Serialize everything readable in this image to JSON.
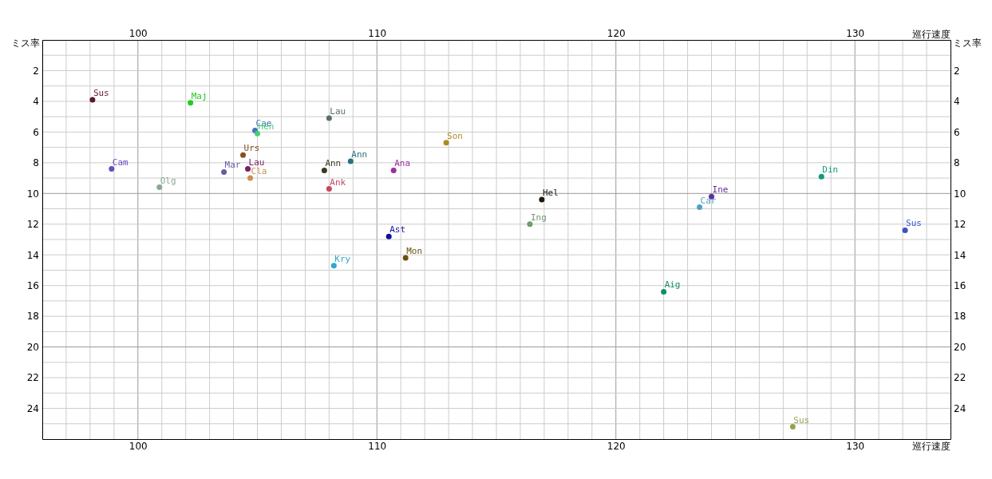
{
  "chart_data": {
    "type": "scatter",
    "xlabel": "巡行速度",
    "x2label": "巡行速度",
    "ylabel": "ミス率",
    "y2label": "ミス率",
    "xlim": [
      96,
      134
    ],
    "x2lim": [
      96,
      134
    ],
    "ylim": [
      26,
      0
    ],
    "y2lim": [
      26,
      0
    ],
    "xticks": [
      {
        "value": 96,
        "label": null
      },
      {
        "value": 97,
        "label": null
      },
      {
        "value": 98,
        "label": null
      },
      {
        "value": 99,
        "label": null
      },
      100,
      {
        "value": 101,
        "label": null
      },
      {
        "value": 102,
        "label": null
      },
      {
        "value": 103,
        "label": null
      },
      {
        "value": 104,
        "label": null
      },
      {
        "value": 105,
        "label": null
      },
      {
        "value": 106,
        "label": null
      },
      {
        "value": 107,
        "label": null
      },
      {
        "value": 108,
        "label": null
      },
      {
        "value": 109,
        "label": null
      },
      110,
      {
        "value": 111,
        "label": null
      },
      {
        "value": 112,
        "label": null
      },
      {
        "value": 113,
        "label": null
      },
      {
        "value": 114,
        "label": null
      },
      {
        "value": 115,
        "label": null
      },
      {
        "value": 116,
        "label": null
      },
      {
        "value": 117,
        "label": null
      },
      {
        "value": 118,
        "label": null
      },
      {
        "value": 119,
        "label": null
      },
      120,
      {
        "value": 121,
        "label": null
      },
      {
        "value": 122,
        "label": null
      },
      {
        "value": 123,
        "label": null
      },
      {
        "value": 124,
        "label": null
      },
      {
        "value": 125,
        "label": null
      },
      {
        "value": 126,
        "label": null
      },
      {
        "value": 127,
        "label": null
      },
      {
        "value": 128,
        "label": null
      },
      {
        "value": 129,
        "label": null
      },
      130,
      {
        "value": 131,
        "label": null
      },
      {
        "value": 132,
        "label": null
      },
      {
        "value": 133,
        "label": null
      }
    ],
    "x2ticks": [
      100,
      110,
      120,
      130
    ],
    "yticks": [
      {
        "value": 1,
        "label": null
      },
      2,
      {
        "value": 3,
        "label": null
      },
      4,
      {
        "value": 5,
        "label": null
      },
      6,
      {
        "value": 7,
        "label": null
      },
      8,
      {
        "value": 9,
        "label": null
      },
      10,
      {
        "value": 11,
        "label": null
      },
      12,
      {
        "value": 13,
        "label": null
      },
      14,
      {
        "value": 15,
        "label": null
      },
      16,
      {
        "value": 17,
        "label": null
      },
      18,
      {
        "value": 19,
        "label": null
      },
      20,
      {
        "value": 21,
        "label": null
      },
      22,
      {
        "value": 23,
        "label": null
      },
      24,
      {
        "value": 25,
        "label": null
      }
    ],
    "y2ticks": [
      2,
      4,
      6,
      8,
      10,
      12,
      14,
      16,
      18,
      20,
      22,
      24
    ],
    "grid": true,
    "marker": "circle",
    "series": [
      {
        "name": "Sus",
        "color": "#5a1a2a",
        "x": [
          98.1
        ],
        "values": [
          3.9
        ]
      },
      {
        "name": "Maj",
        "color": "#22cc22",
        "x": [
          102.2
        ],
        "values": [
          4.1
        ]
      },
      {
        "name": "Cam",
        "color": "#6a4ac0",
        "x": [
          98.9
        ],
        "values": [
          8.4
        ]
      },
      {
        "name": "Olg",
        "color": "#8aaa90",
        "x": [
          100.9
        ],
        "values": [
          9.6
        ]
      },
      {
        "name": "Mar",
        "color": "#6a5aaa",
        "x": [
          103.6
        ],
        "values": [
          8.6
        ]
      },
      {
        "name": "Urs",
        "color": "#8a5020",
        "x": [
          104.4
        ],
        "values": [
          7.5
        ]
      },
      {
        "name": "Lau",
        "color": "#7a2060",
        "x": [
          104.6
        ],
        "values": [
          8.4
        ]
      },
      {
        "name": "Cla",
        "color": "#c89050",
        "x": [
          104.7
        ],
        "values": [
          9.0
        ]
      },
      {
        "name": "Cae",
        "color": "#4a70c0",
        "x": [
          104.9
        ],
        "values": [
          5.9
        ]
      },
      {
        "name": "Hen",
        "color": "#40d070",
        "x": [
          105.0
        ],
        "values": [
          6.1
        ]
      },
      {
        "name": "Lau",
        "color": "#5a7070",
        "x": [
          108.0
        ],
        "values": [
          5.1
        ]
      },
      {
        "name": "Son",
        "color": "#b08a20",
        "x": [
          112.9
        ],
        "values": [
          6.7
        ]
      },
      {
        "name": "Ann",
        "color": "#2a7080",
        "x": [
          108.9
        ],
        "values": [
          7.9
        ]
      },
      {
        "name": "Ann",
        "color": "#3a3a20",
        "x": [
          107.8
        ],
        "values": [
          8.5
        ]
      },
      {
        "name": "Ana",
        "color": "#9a30a0",
        "x": [
          110.7
        ],
        "values": [
          8.5
        ]
      },
      {
        "name": "Ank",
        "color": "#c04a60",
        "x": [
          108.0
        ],
        "values": [
          9.7
        ]
      },
      {
        "name": "Hel",
        "color": "#201810",
        "x": [
          116.9
        ],
        "values": [
          10.4
        ]
      },
      {
        "name": "Ing",
        "color": "#709a70",
        "x": [
          116.4
        ],
        "values": [
          12.0
        ]
      },
      {
        "name": "Ast",
        "color": "#1010a0",
        "x": [
          110.5
        ],
        "values": [
          12.8
        ]
      },
      {
        "name": "Mon",
        "color": "#6a5010",
        "x": [
          111.2
        ],
        "values": [
          14.2
        ]
      },
      {
        "name": "Kry",
        "color": "#30a8c8",
        "x": [
          108.2
        ],
        "values": [
          14.7
        ]
      },
      {
        "name": "Din",
        "color": "#109a80",
        "x": [
          128.6
        ],
        "values": [
          8.9
        ]
      },
      {
        "name": "Ine",
        "color": "#6030a0",
        "x": [
          124.0
        ],
        "values": [
          10.2
        ]
      },
      {
        "name": "Car",
        "color": "#50a0c8",
        "x": [
          123.5
        ],
        "values": [
          10.9
        ]
      },
      {
        "name": "Sus",
        "color": "#3a50c8",
        "x": [
          132.1
        ],
        "values": [
          12.4
        ]
      },
      {
        "name": "Aig",
        "color": "#109060",
        "x": [
          122.0
        ],
        "values": [
          16.4
        ]
      },
      {
        "name": "Sus",
        "color": "#98a050",
        "x": [
          127.4
        ],
        "values": [
          25.2
        ]
      }
    ]
  }
}
